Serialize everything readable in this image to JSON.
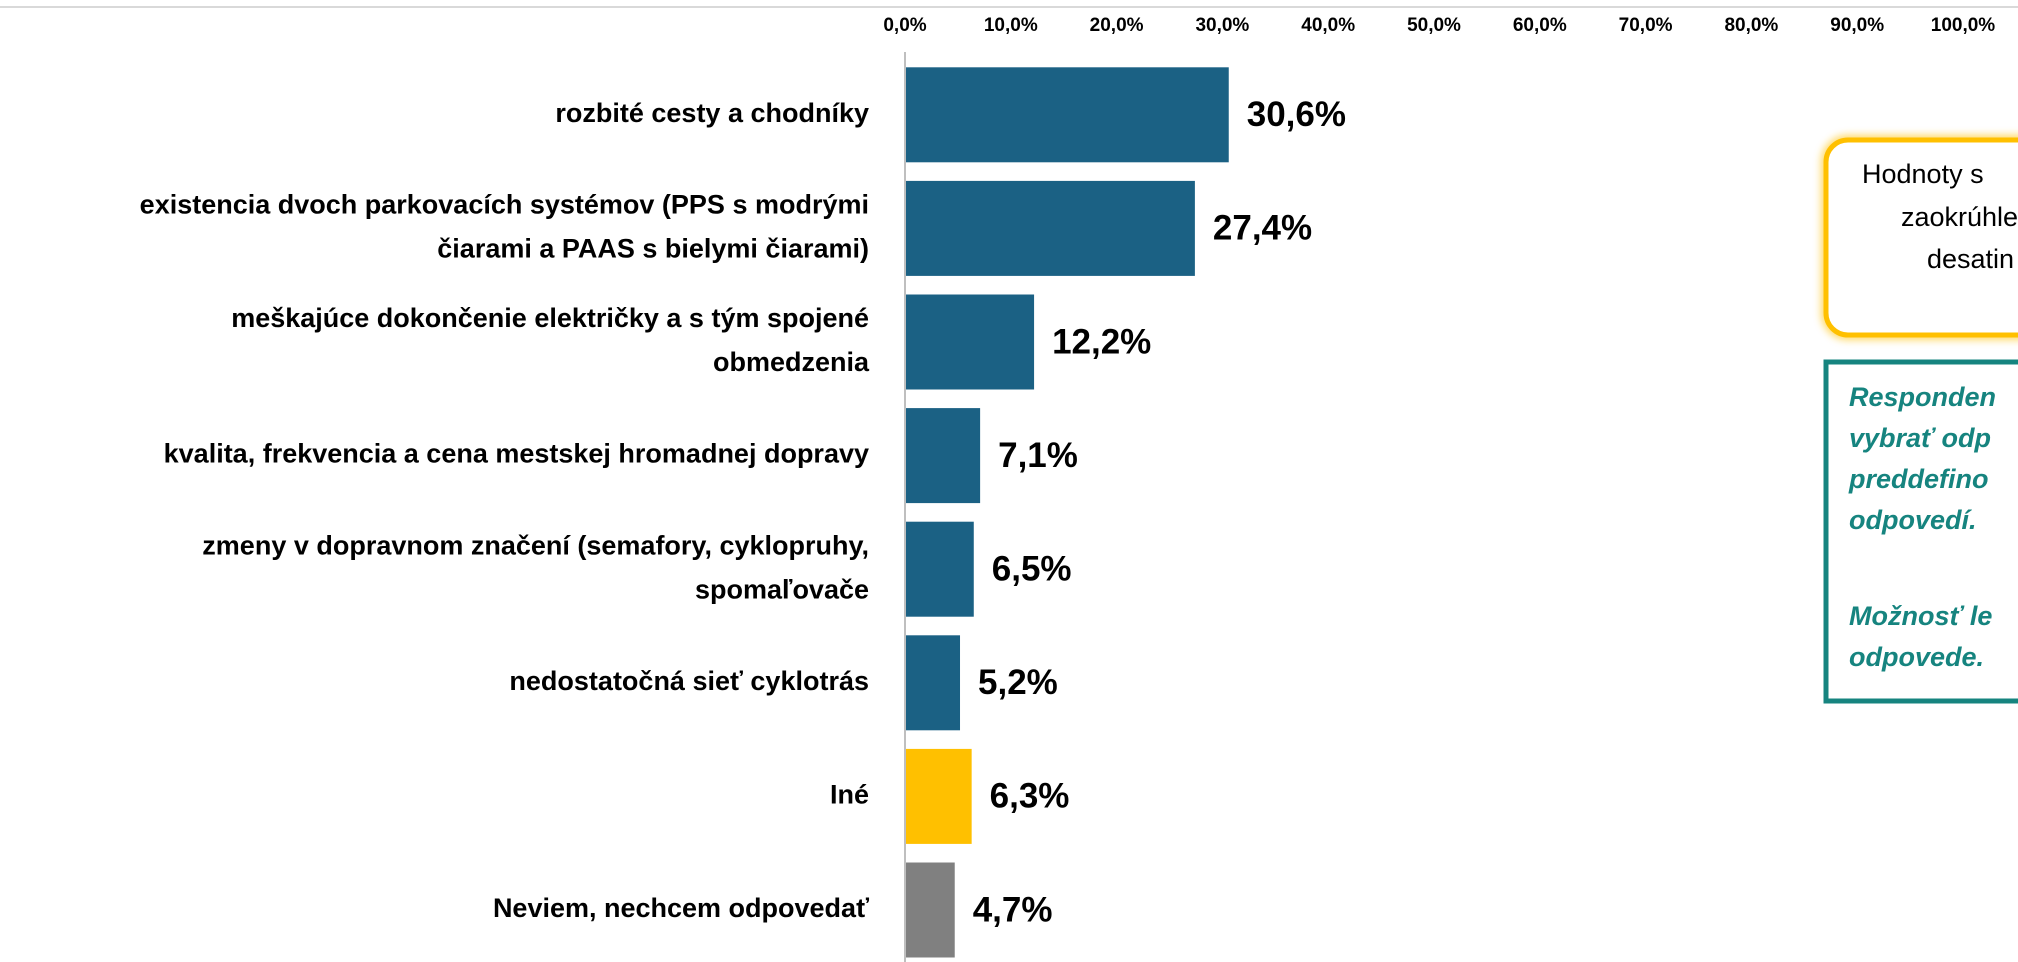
{
  "chart_data": {
    "type": "barh",
    "categories": [
      [
        "rozbité cesty a chodníky"
      ],
      [
        "existencia dvoch parkovacích systémov (PPS s modrými",
        "čiarami a PAAS s bielymi čiarami)"
      ],
      [
        "meškajúce dokončenie električky a s tým spojené",
        "obmedzenia"
      ],
      [
        "kvalita, frekvencia a cena mestskej hromadnej dopravy"
      ],
      [
        "zmeny v dopravnom značení (semafory, cyklopruhy,",
        "spomaľovače"
      ],
      [
        "nedostatočná sieť cyklotrás"
      ],
      [
        "Iné"
      ],
      [
        "Neviem, nechcem odpovedať"
      ]
    ],
    "values": [
      30.6,
      27.4,
      12.2,
      7.1,
      6.5,
      5.2,
      6.3,
      4.7
    ],
    "value_labels": [
      "30,6%",
      "27,4%",
      "12,2%",
      "7,1%",
      "6,5%",
      "5,2%",
      "6,3%",
      "4,7%"
    ],
    "colors": [
      "#1b6184",
      "#1b6184",
      "#1b6184",
      "#1b6184",
      "#1b6184",
      "#1b6184",
      "#ffc000",
      "#808080"
    ],
    "xlim": [
      0,
      100
    ],
    "xticks": [
      {
        "value": 0,
        "label": "0,0%"
      },
      {
        "value": 10,
        "label": "10,0%"
      },
      {
        "value": 20,
        "label": "20,0%"
      },
      {
        "value": 30,
        "label": "30,0%"
      },
      {
        "value": 40,
        "label": "40,0%"
      },
      {
        "value": 50,
        "label": "50,0%"
      },
      {
        "value": 60,
        "label": "60,0%"
      },
      {
        "value": 70,
        "label": "70,0%"
      },
      {
        "value": 80,
        "label": "80,0%"
      },
      {
        "value": 90,
        "label": "90,0%"
      },
      {
        "value": 100,
        "label": "100,0%"
      }
    ],
    "grid": false,
    "annotations": [
      [
        "Hodnoty s",
        "zaokrúhle",
        "desatin"
      ],
      [
        "Responden",
        "vybrať odp",
        "preddefino",
        "odpovedí.",
        "Možnosť le",
        "odpovede."
      ]
    ]
  }
}
